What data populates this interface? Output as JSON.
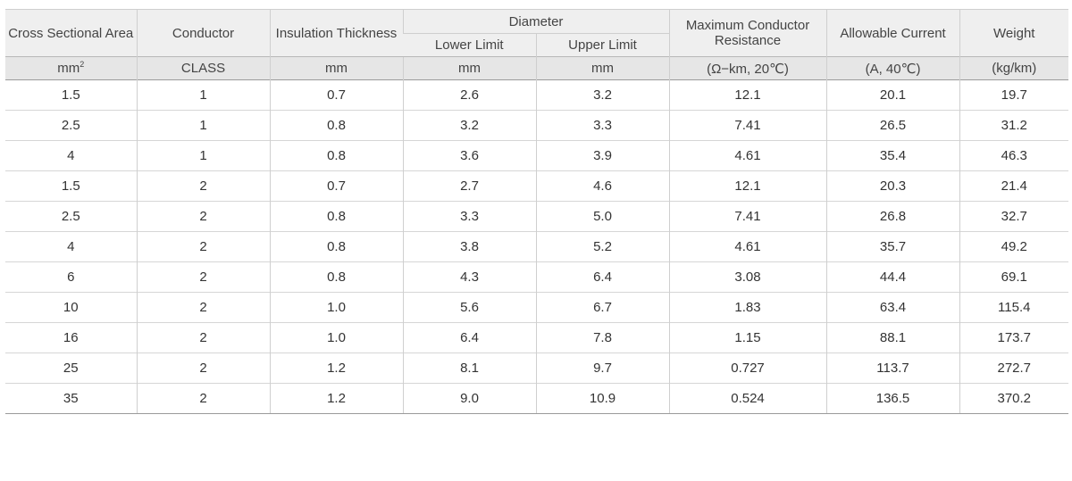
{
  "header": {
    "area": "Cross Sectional Area",
    "conductor": "Conductor",
    "insulation": "Insulation Thickness",
    "diameter": "Diameter",
    "lower": "Lower Limit",
    "upper": "Upper Limit",
    "resistance": "Maximum Conductor Resistance",
    "current": "Allowable Current",
    "weight": "Weight"
  },
  "units": {
    "area_base": "mm",
    "area_exp": "2",
    "conductor": "CLASS",
    "insulation": "mm",
    "lower": "mm",
    "upper": "mm",
    "resistance": "(Ω−km, 20℃)",
    "current": "(A, 40℃)",
    "weight": "(kg/km)"
  },
  "rows": [
    [
      "1.5",
      "1",
      "0.7",
      "2.6",
      "3.2",
      "12.1",
      "20.1",
      "19.7"
    ],
    [
      "2.5",
      "1",
      "0.8",
      "3.2",
      "3.3",
      "7.41",
      "26.5",
      "31.2"
    ],
    [
      "4",
      "1",
      "0.8",
      "3.6",
      "3.9",
      "4.61",
      "35.4",
      "46.3"
    ],
    [
      "1.5",
      "2",
      "0.7",
      "2.7",
      "4.6",
      "12.1",
      "20.3",
      "21.4"
    ],
    [
      "2.5",
      "2",
      "0.8",
      "3.3",
      "5.0",
      "7.41",
      "26.8",
      "32.7"
    ],
    [
      "4",
      "2",
      "0.8",
      "3.8",
      "5.2",
      "4.61",
      "35.7",
      "49.2"
    ],
    [
      "6",
      "2",
      "0.8",
      "4.3",
      "6.4",
      "3.08",
      "44.4",
      "69.1"
    ],
    [
      "10",
      "2",
      "1.0",
      "5.6",
      "6.7",
      "1.83",
      "63.4",
      "115.4"
    ],
    [
      "16",
      "2",
      "1.0",
      "6.4",
      "7.8",
      "1.15",
      "88.1",
      "173.7"
    ],
    [
      "25",
      "2",
      "1.2",
      "8.1",
      "9.7",
      "0.727",
      "113.7",
      "272.7"
    ],
    [
      "35",
      "2",
      "1.2",
      "9.0",
      "10.9",
      "0.524",
      "136.5",
      "370.2"
    ]
  ]
}
